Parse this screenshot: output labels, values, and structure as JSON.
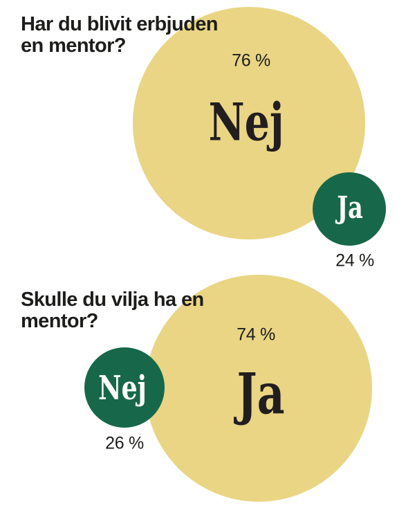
{
  "colors": {
    "background": "#ffffff",
    "bubble_yellow": "#e9d584",
    "bubble_green": "#17684b",
    "text_dark": "#1d1d1b",
    "text_on_green": "#ffffff"
  },
  "charts": [
    {
      "question": "Har du blivit erbjuden en mentor?",
      "title_line1": "Har du blivit erbjuden",
      "title_line2": "en mentor?",
      "big_bubble": {
        "label": "Nej",
        "percent_label": "76 %",
        "value": 76,
        "color": "#e9d584"
      },
      "small_bubble": {
        "label": "Ja",
        "percent_label": "24 %",
        "value": 24,
        "color": "#17684b"
      }
    },
    {
      "question": "Skulle du vilja ha en mentor?",
      "title_line1": "Skulle du vilja ha en",
      "title_line2": "mentor?",
      "big_bubble": {
        "label": "Ja",
        "percent_label": "74 %",
        "value": 74,
        "color": "#e9d584"
      },
      "small_bubble": {
        "label": "Nej",
        "percent_label": "26 %",
        "value": 26,
        "color": "#17684b"
      }
    }
  ],
  "chart_data": [
    {
      "type": "pie",
      "variant": "proportional-bubbles",
      "title": "Har du blivit erbjuden en mentor?",
      "categories": [
        "Nej",
        "Ja"
      ],
      "values": [
        76,
        24
      ],
      "unit": "%",
      "colors": [
        "#e9d584",
        "#17684b"
      ],
      "annotations": [
        "76 %",
        "24 %"
      ],
      "legend_position": "none",
      "layout": "large bubble with small bubble overlapping bottom-right"
    },
    {
      "type": "pie",
      "variant": "proportional-bubbles",
      "title": "Skulle du vilja ha en mentor?",
      "categories": [
        "Ja",
        "Nej"
      ],
      "values": [
        74,
        26
      ],
      "unit": "%",
      "colors": [
        "#e9d584",
        "#17684b"
      ],
      "annotations": [
        "74 %",
        "26 %"
      ],
      "legend_position": "none",
      "layout": "large bubble with small bubble overlapping middle-left"
    }
  ]
}
